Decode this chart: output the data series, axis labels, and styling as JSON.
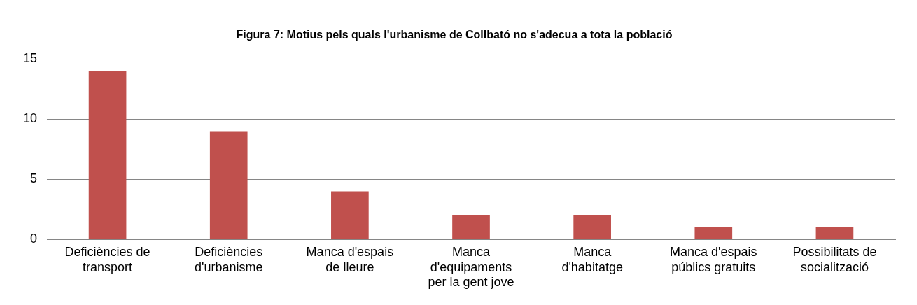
{
  "chart_data": {
    "type": "bar",
    "title": "Figura 7: Motius pels quals l'urbanisme de Collbató no s'adecua a tota la població",
    "categories": [
      "Deficiències de transport",
      "Deficiències d'urbanisme",
      "Manca d'espais de lleure",
      "Manca d'equipaments per la gent jove",
      "Manca d'habitatge",
      "Manca d'espais públics gratuits",
      "Possibilitats de socialització"
    ],
    "values": [
      14,
      9,
      4,
      2,
      2,
      1,
      1
    ],
    "color": "#c0504d",
    "ylim": [
      0,
      15
    ],
    "yticks": [
      0,
      5,
      10,
      15
    ],
    "grid": "y",
    "legend": false
  }
}
